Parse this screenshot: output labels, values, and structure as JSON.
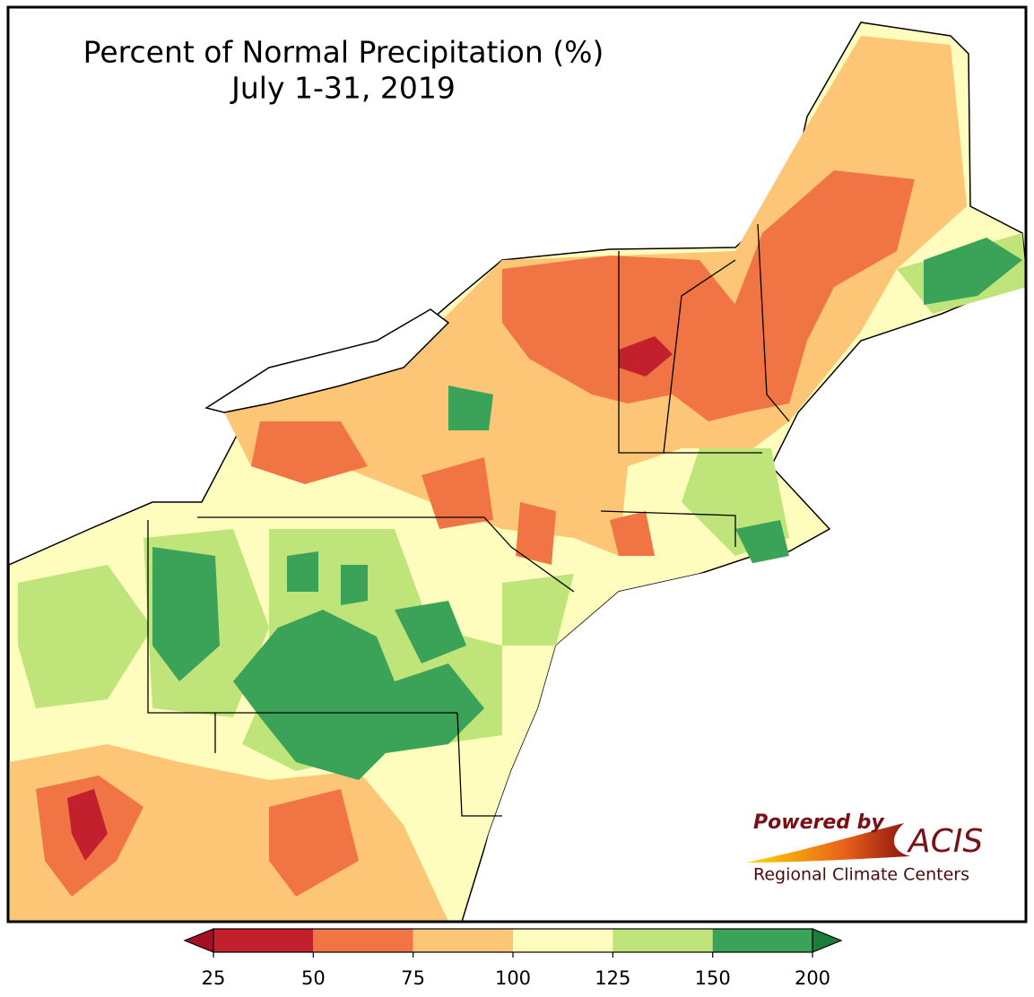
{
  "header": {
    "title": "Percent of Normal Precipitation (%)",
    "subtitle": "July 1-31, 2019"
  },
  "legend": {
    "ticks": [
      25,
      50,
      75,
      100,
      125,
      150,
      200
    ],
    "colors": [
      "#c3202d",
      "#f07444",
      "#fdc576",
      "#fffdbe",
      "#bfe47a",
      "#3aa357"
    ],
    "under_color": "#a50f26",
    "over_color": "#1a7d3a"
  },
  "logo": {
    "powered_by": "Powered by",
    "name": "ACIS",
    "org": "Regional Climate Centers"
  }
}
